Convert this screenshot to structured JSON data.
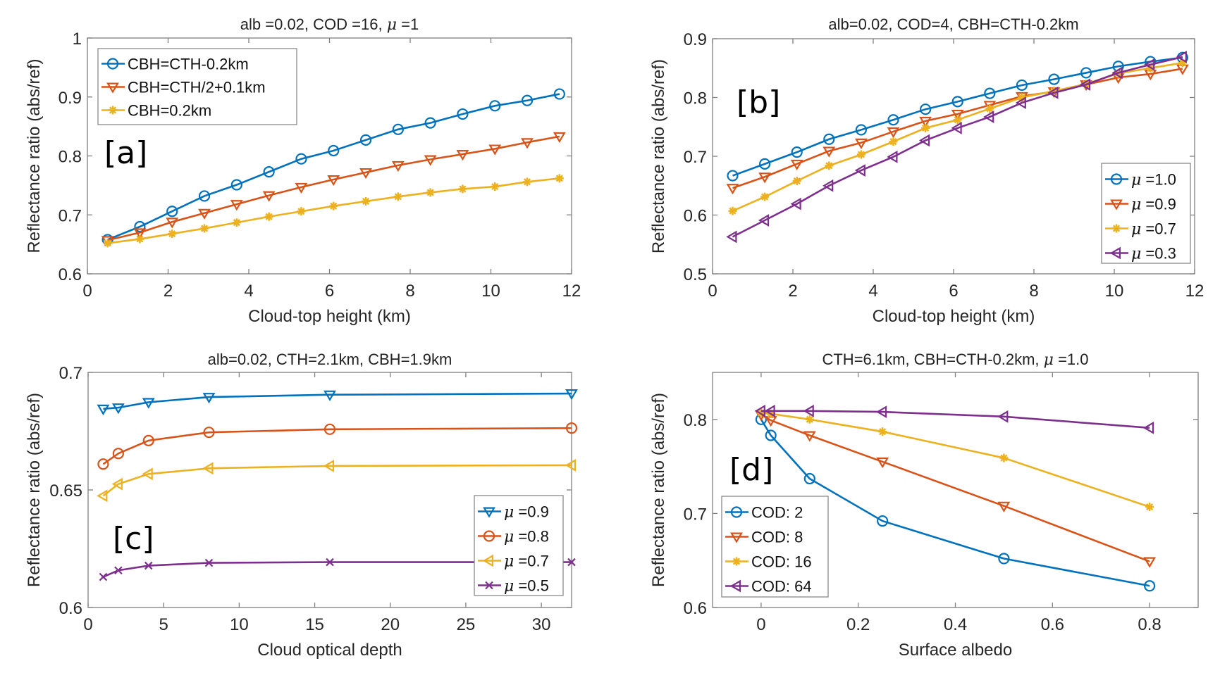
{
  "figure": {
    "description": "Four-panel line chart figure of reflectance ratio (abs/ref)"
  },
  "chart_data": [
    {
      "id": "a",
      "type": "line",
      "panel_label": "[a]",
      "title": "alb =0.02, COD =16, μ =1",
      "xlabel": "Cloud-top height (km)",
      "ylabel": "Reflectance ratio (abs/ref)",
      "xlim": [
        0,
        12
      ],
      "ylim": [
        0.6,
        1.0
      ],
      "xticks": [
        0,
        2,
        4,
        6,
        8,
        10,
        12
      ],
      "xtick_labels": [
        "0",
        "2",
        "4",
        "6",
        "8",
        "10",
        "12"
      ],
      "yticks": [
        0.6,
        0.7,
        0.8,
        0.9,
        1.0
      ],
      "ytick_labels": [
        "0.6",
        "0.7",
        "0.8",
        "0.9",
        "1"
      ],
      "grid": false,
      "legend_position": "top-left",
      "x": [
        0.5,
        1.3,
        2.1,
        2.9,
        3.7,
        4.5,
        5.3,
        6.1,
        6.9,
        7.7,
        8.5,
        9.3,
        10.1,
        10.9,
        11.7
      ],
      "series": [
        {
          "name": "CBH=CTH-0.2km",
          "color": "#0072BD",
          "marker": "circle",
          "values": [
            0.658,
            0.68,
            0.706,
            0.732,
            0.751,
            0.773,
            0.795,
            0.809,
            0.827,
            0.845,
            0.856,
            0.871,
            0.885,
            0.894,
            0.905
          ]
        },
        {
          "name": "CBH=CTH/2+0.1km",
          "color": "#D95319",
          "marker": "triangle-down",
          "values": [
            0.657,
            0.67,
            0.688,
            0.703,
            0.718,
            0.733,
            0.747,
            0.76,
            0.772,
            0.784,
            0.794,
            0.803,
            0.812,
            0.823,
            0.833
          ]
        },
        {
          "name": "CBH=0.2km",
          "color": "#EDB120",
          "marker": "asterisk",
          "values": [
            0.652,
            0.659,
            0.668,
            0.677,
            0.687,
            0.697,
            0.706,
            0.715,
            0.723,
            0.731,
            0.738,
            0.744,
            0.748,
            0.756,
            0.762
          ]
        }
      ]
    },
    {
      "id": "b",
      "type": "line",
      "panel_label": "[b]",
      "title": "alb=0.02, COD=4, CBH=CTH-0.2km",
      "xlabel": "Cloud-top height (km)",
      "ylabel": "Reflectance ratio (abs/ref)",
      "xlim": [
        0,
        12
      ],
      "ylim": [
        0.5,
        0.9
      ],
      "xticks": [
        0,
        2,
        4,
        6,
        8,
        10,
        12
      ],
      "xtick_labels": [
        "0",
        "2",
        "4",
        "6",
        "8",
        "10",
        "12"
      ],
      "yticks": [
        0.5,
        0.6,
        0.7,
        0.8,
        0.9
      ],
      "ytick_labels": [
        "0.5",
        "0.6",
        "0.7",
        "0.8",
        "0.9"
      ],
      "grid": false,
      "legend_position": "bottom-right",
      "x": [
        0.5,
        1.3,
        2.1,
        2.9,
        3.7,
        4.5,
        5.3,
        6.1,
        6.9,
        7.7,
        8.5,
        9.3,
        10.1,
        10.9,
        11.7
      ],
      "series": [
        {
          "name": "μ =1.0",
          "color": "#0072BD",
          "marker": "circle",
          "values": [
            0.667,
            0.687,
            0.707,
            0.729,
            0.745,
            0.762,
            0.78,
            0.793,
            0.807,
            0.821,
            0.831,
            0.842,
            0.853,
            0.861,
            0.868
          ]
        },
        {
          "name": "μ =0.9",
          "color": "#D95319",
          "marker": "triangle-down",
          "values": [
            0.646,
            0.665,
            0.687,
            0.709,
            0.723,
            0.742,
            0.76,
            0.772,
            0.787,
            0.802,
            0.81,
            0.822,
            0.834,
            0.84,
            0.849
          ]
        },
        {
          "name": "μ =0.7",
          "color": "#EDB120",
          "marker": "asterisk",
          "values": [
            0.607,
            0.631,
            0.658,
            0.684,
            0.703,
            0.725,
            0.748,
            0.762,
            0.781,
            0.8,
            0.811,
            0.823,
            0.841,
            0.85,
            0.859
          ]
        },
        {
          "name": "μ =0.3",
          "color": "#7E2F8E",
          "marker": "triangle-left",
          "values": [
            0.563,
            0.591,
            0.619,
            0.65,
            0.676,
            0.699,
            0.727,
            0.748,
            0.767,
            0.791,
            0.808,
            0.822,
            0.842,
            0.856,
            0.869
          ]
        }
      ]
    },
    {
      "id": "c",
      "type": "line",
      "panel_label": "[c]",
      "title": "alb=0.02, CTH=2.1km, CBH=1.9km",
      "xlabel": "Cloud optical depth",
      "ylabel": "Reflectance ratio (abs/ref)",
      "xlim": [
        0,
        32
      ],
      "ylim": [
        0.6,
        0.7
      ],
      "xticks": [
        0,
        5,
        10,
        15,
        20,
        25,
        30
      ],
      "xtick_labels": [
        "0",
        "5",
        "10",
        "15",
        "20",
        "25",
        "30"
      ],
      "yticks": [
        0.6,
        0.65,
        0.7
      ],
      "ytick_labels": [
        "0.6",
        "0.65",
        "0.7"
      ],
      "grid": false,
      "legend_position": "bottom-right",
      "x": [
        1,
        2,
        4,
        8,
        16,
        32
      ],
      "series": [
        {
          "name": "μ =0.9",
          "color": "#0072BD",
          "marker": "triangle-down",
          "values": [
            0.6845,
            0.685,
            0.6873,
            0.6895,
            0.6905,
            0.691
          ]
        },
        {
          "name": "μ =0.8",
          "color": "#D95319",
          "marker": "circle",
          "values": [
            0.661,
            0.6655,
            0.671,
            0.6745,
            0.6758,
            0.6763
          ]
        },
        {
          "name": "μ =0.7",
          "color": "#EDB120",
          "marker": "triangle-left",
          "values": [
            0.6475,
            0.6525,
            0.6568,
            0.6592,
            0.6602,
            0.6605
          ]
        },
        {
          "name": "μ =0.5",
          "color": "#7E2F8E",
          "marker": "x",
          "values": [
            0.613,
            0.6158,
            0.6178,
            0.619,
            0.6193,
            0.6193
          ]
        }
      ]
    },
    {
      "id": "d",
      "type": "line",
      "panel_label": "[d]",
      "title": "CTH=6.1km, CBH=CTH-0.2km, μ =1.0",
      "xlabel": "Surface albedo",
      "ylabel": "Reflectance ratio (abs/ref)",
      "xlim": [
        -0.1,
        0.9
      ],
      "ylim": [
        0.6,
        0.85
      ],
      "xticks": [
        0,
        0.2,
        0.4,
        0.6,
        0.8
      ],
      "xtick_labels": [
        "0",
        "0.2",
        "0.4",
        "0.6",
        "0.8"
      ],
      "yticks": [
        0.6,
        0.7,
        0.8
      ],
      "ytick_labels": [
        "0.6",
        "0.7",
        "0.8"
      ],
      "grid": false,
      "legend_position": "bottom-left",
      "x": [
        0,
        0.02,
        0.1,
        0.25,
        0.5,
        0.8
      ],
      "series": [
        {
          "name": "COD: 2",
          "color": "#0072BD",
          "marker": "circle",
          "values": [
            0.8,
            0.783,
            0.737,
            0.692,
            0.652,
            0.623
          ]
        },
        {
          "name": "COD: 8",
          "color": "#D95319",
          "marker": "triangle-down",
          "values": [
            0.805,
            0.799,
            0.783,
            0.755,
            0.708,
            0.649
          ]
        },
        {
          "name": "COD: 16",
          "color": "#EDB120",
          "marker": "asterisk",
          "values": [
            0.807,
            0.806,
            0.8,
            0.787,
            0.759,
            0.707
          ]
        },
        {
          "name": "COD: 64",
          "color": "#7E2F8E",
          "marker": "triangle-left",
          "values": [
            0.809,
            0.809,
            0.809,
            0.808,
            0.803,
            0.791
          ]
        }
      ]
    }
  ]
}
